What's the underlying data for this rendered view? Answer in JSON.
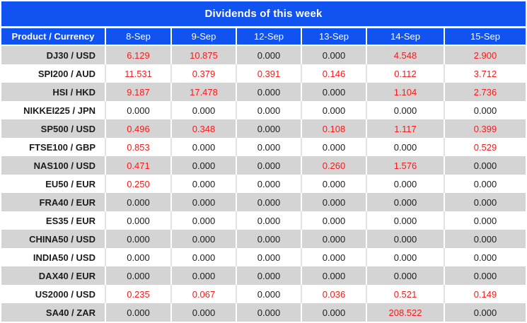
{
  "title": "Dividends of this week",
  "colors": {
    "header_blue": "#1153f0",
    "row_gray": "#d4d4d4",
    "row_white": "#ffffff",
    "sep_on_gray": "#ffffff",
    "sep_on_white": "#e3e3e3",
    "value_red": "#fa1a1a",
    "value_black": "#1c1c1c"
  },
  "table": {
    "product_header": "Product / Currency",
    "date_headers": [
      "8-Sep",
      "9-Sep",
      "12-Sep",
      "13-Sep",
      "14-Sep",
      "15-Sep"
    ],
    "rows": [
      {
        "product": "DJ30 / USD",
        "values": [
          "6.129",
          "10.875",
          "0.000",
          "0.000",
          "4.548",
          "2.900"
        ]
      },
      {
        "product": "SPI200 / AUD",
        "values": [
          "11.531",
          "0.379",
          "0.391",
          "0.146",
          "0.112",
          "3.712"
        ]
      },
      {
        "product": "HSI / HKD",
        "values": [
          "9.187",
          "17.478",
          "0.000",
          "0.000",
          "1.104",
          "2.736"
        ]
      },
      {
        "product": "NIKKEI225 / JPN",
        "values": [
          "0.000",
          "0.000",
          "0.000",
          "0.000",
          "0.000",
          "0.000"
        ]
      },
      {
        "product": "SP500 / USD",
        "values": [
          "0.496",
          "0.348",
          "0.000",
          "0.108",
          "1.117",
          "0.399"
        ]
      },
      {
        "product": "FTSE100 / GBP",
        "values": [
          "0.853",
          "0.000",
          "0.000",
          "0.000",
          "0.000",
          "0.529"
        ]
      },
      {
        "product": "NAS100 / USD",
        "values": [
          "0.471",
          "0.000",
          "0.000",
          "0.260",
          "1.576",
          "0.000"
        ]
      },
      {
        "product": "EU50 / EUR",
        "values": [
          "0.250",
          "0.000",
          "0.000",
          "0.000",
          "0.000",
          "0.000"
        ]
      },
      {
        "product": "FRA40 / EUR",
        "values": [
          "0.000",
          "0.000",
          "0.000",
          "0.000",
          "0.000",
          "0.000"
        ]
      },
      {
        "product": "ES35 / EUR",
        "values": [
          "0.000",
          "0.000",
          "0.000",
          "0.000",
          "0.000",
          "0.000"
        ]
      },
      {
        "product": "CHINA50 / USD",
        "values": [
          "0.000",
          "0.000",
          "0.000",
          "0.000",
          "0.000",
          "0.000"
        ]
      },
      {
        "product": "INDIA50 / USD",
        "values": [
          "0.000",
          "0.000",
          "0.000",
          "0.000",
          "0.000",
          "0.000"
        ]
      },
      {
        "product": "DAX40 / EUR",
        "values": [
          "0.000",
          "0.000",
          "0.000",
          "0.000",
          "0.000",
          "0.000"
        ]
      },
      {
        "product": "US2000 / USD",
        "values": [
          "0.235",
          "0.067",
          "0.000",
          "0.036",
          "0.521",
          "0.149"
        ]
      },
      {
        "product": "SA40 / ZAR",
        "values": [
          "0.000",
          "0.000",
          "0.000",
          "0.000",
          "208.522",
          "0.000"
        ]
      }
    ]
  }
}
